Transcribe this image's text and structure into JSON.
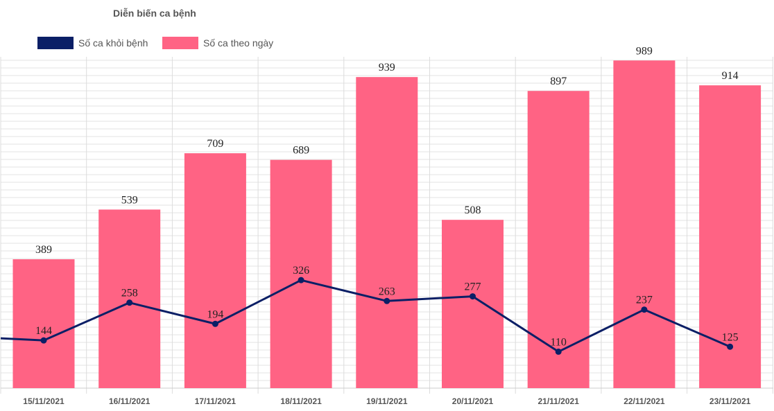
{
  "chart_data": {
    "type": "bar",
    "title": "Diễn biến ca bệnh",
    "categories": [
      "15/11/2021",
      "16/11/2021",
      "17/11/2021",
      "18/11/2021",
      "19/11/2021",
      "20/11/2021",
      "21/11/2021",
      "22/11/2021",
      "23/11/2021"
    ],
    "series": [
      {
        "name": "Số ca khỏi bệnh",
        "type": "line",
        "color": "#0b1f66",
        "values": [
          144,
          258,
          194,
          326,
          263,
          277,
          110,
          237,
          125
        ]
      },
      {
        "name": "Số ca theo ngày",
        "type": "bar",
        "color": "#ff6384",
        "values": [
          389,
          539,
          709,
          689,
          939,
          508,
          897,
          989,
          914
        ]
      }
    ],
    "xlabel": "",
    "ylabel": "",
    "grid": true,
    "legend": "top-left"
  }
}
